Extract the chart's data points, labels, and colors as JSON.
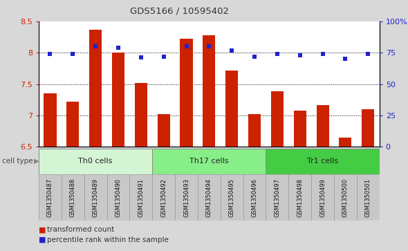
{
  "title": "GDS5166 / 10595402",
  "samples": [
    "GSM1350487",
    "GSM1350488",
    "GSM1350489",
    "GSM1350490",
    "GSM1350491",
    "GSM1350492",
    "GSM1350493",
    "GSM1350494",
    "GSM1350495",
    "GSM1350496",
    "GSM1350497",
    "GSM1350498",
    "GSM1350499",
    "GSM1350500",
    "GSM1350501"
  ],
  "bar_values": [
    7.35,
    7.22,
    8.37,
    8.0,
    7.52,
    7.02,
    8.22,
    8.28,
    7.72,
    7.02,
    7.38,
    7.08,
    7.17,
    6.65,
    7.1
  ],
  "dot_values": [
    74,
    74,
    80,
    79,
    71,
    72,
    80,
    80,
    77,
    72,
    74,
    73,
    74,
    70,
    74
  ],
  "bar_color": "#cc2200",
  "dot_color": "#2222cc",
  "ylim_left": [
    6.5,
    8.5
  ],
  "ylim_right": [
    0,
    100
  ],
  "yticks_left": [
    6.5,
    7.0,
    7.5,
    8.0,
    8.5
  ],
  "ytick_labels_left": [
    "6.5",
    "7",
    "7.5",
    "8",
    "8.5"
  ],
  "yticks_right": [
    0,
    25,
    50,
    75,
    100
  ],
  "ytick_labels_right": [
    "0",
    "25",
    "50",
    "75",
    "100%"
  ],
  "cell_groups": [
    {
      "label": "Th0 cells",
      "start": 0,
      "end": 5,
      "color": "#d4f5d4"
    },
    {
      "label": "Th17 cells",
      "start": 5,
      "end": 10,
      "color": "#88ee88"
    },
    {
      "label": "Tr1 cells",
      "start": 10,
      "end": 15,
      "color": "#44cc44"
    }
  ],
  "cell_type_label": "cell type",
  "legend_bar_label": "transformed count",
  "legend_dot_label": "percentile rank within the sample",
  "bg_color": "#d8d8d8",
  "label_bg_color": "#c8c8c8",
  "plot_bg": "#ffffff",
  "bar_bottom": 6.5,
  "bar_width": 0.55
}
